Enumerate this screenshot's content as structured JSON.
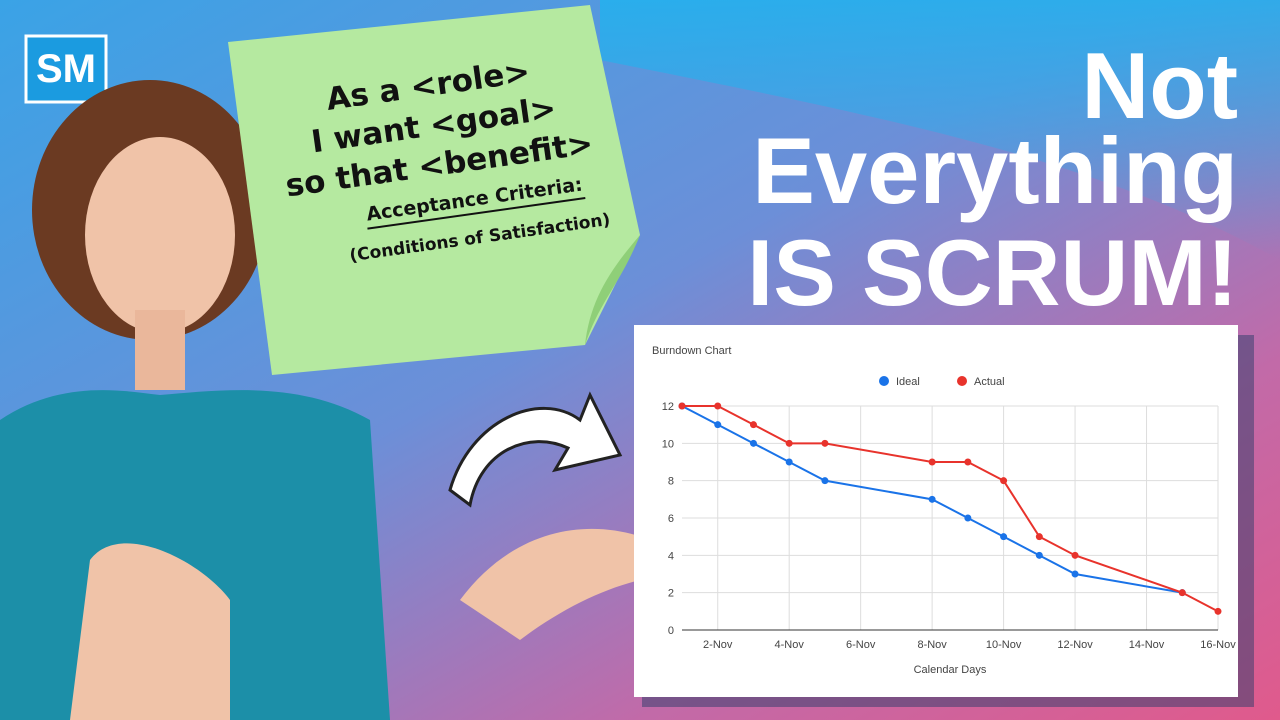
{
  "logo": "SM",
  "note": {
    "lines": [
      "As a <role>",
      "I want <goal>",
      "so that <benefit>"
    ],
    "criteria": "Acceptance Criteria:",
    "conditions": "(Conditions of Satisfaction)"
  },
  "headline": [
    "Not",
    "Everything",
    "IS SCRUM!"
  ],
  "chart_data": {
    "type": "line",
    "title": "Burndown Chart",
    "x_label": "Calendar Days",
    "x": [
      1,
      2,
      3,
      4,
      5,
      8,
      9,
      10,
      11,
      12,
      15,
      16
    ],
    "series": [
      {
        "name": "Ideal",
        "color": "#1a73e8",
        "values": [
          12,
          11,
          10,
          9,
          8,
          7,
          6,
          5,
          4,
          3,
          2,
          null
        ]
      },
      {
        "name": "Actual",
        "color": "#e8332c",
        "values": [
          12,
          12,
          11,
          10,
          10,
          9,
          9,
          8,
          5,
          4,
          2,
          1
        ]
      }
    ],
    "xlim": [
      1,
      16
    ],
    "xticks": [
      {
        "value": 2,
        "label": "2-Nov"
      },
      {
        "value": 4,
        "label": "4-Nov"
      },
      {
        "value": 6,
        "label": "6-Nov"
      },
      {
        "value": 8,
        "label": "8-Nov"
      },
      {
        "value": 10,
        "label": "10-Nov"
      },
      {
        "value": 12,
        "label": "12-Nov"
      },
      {
        "value": 14,
        "label": "14-Nov"
      },
      {
        "value": 16,
        "label": "16-Nov"
      }
    ],
    "ylim": [
      0,
      12
    ],
    "yticks": [
      0,
      2,
      4,
      6,
      8,
      10,
      12
    ],
    "grid": true,
    "legend": "top"
  }
}
